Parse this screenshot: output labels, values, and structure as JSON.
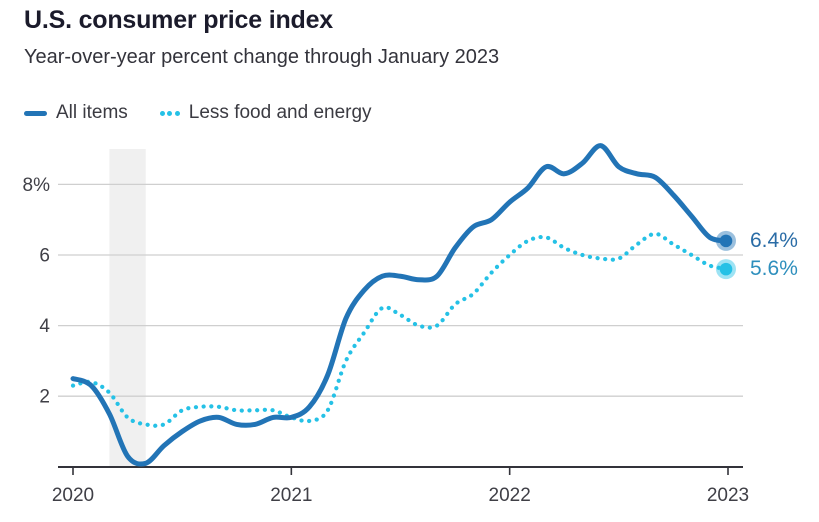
{
  "header": {
    "title": "U.S. consumer price index",
    "subtitle": "Year-over-year percent change through January 2023"
  },
  "legend": {
    "items": [
      {
        "label": "All items",
        "style": "solid"
      },
      {
        "label": "Less food and energy",
        "style": "dotted"
      }
    ]
  },
  "colors": {
    "all_items_line": "#2274b6",
    "core_line": "#25c1e6",
    "grid_line": "#cfcfcf",
    "axis_line": "#33333a",
    "axis_text": "#3f3f46",
    "recession_band": "#f0f0f0",
    "title_text": "#1b1b2b",
    "subtitle_text": "#33333b",
    "legend_text": "#3b3b42",
    "end_label_all_items": "#2a6ca6",
    "end_label_core": "#2e8fbd"
  },
  "chart_data": {
    "type": "line",
    "title": "U.S. consumer price index",
    "subtitle": "Year-over-year percent change through January 2023",
    "x_unit": "month",
    "x_start": "2020-01",
    "x_end": "2023-01",
    "x_ticks": [
      {
        "month_index": 0,
        "label": "2020"
      },
      {
        "month_index": 12,
        "label": "2021"
      },
      {
        "month_index": 24,
        "label": "2022"
      },
      {
        "month_index": 36,
        "label": "2023"
      }
    ],
    "y_ticks": [
      {
        "value": 2,
        "label": "2"
      },
      {
        "value": 4,
        "label": "4"
      },
      {
        "value": 6,
        "label": "6"
      },
      {
        "value": 8,
        "label": "8%"
      }
    ],
    "ylim": [
      0,
      9
    ],
    "grid": "horizontal",
    "legend_position": "top-left",
    "recession_band_month_range": [
      2,
      4
    ],
    "series": [
      {
        "name": "All items",
        "style": "solid",
        "color": "#2274b6",
        "end_label": "6.4%",
        "values": [
          2.5,
          2.3,
          1.5,
          0.3,
          0.1,
          0.6,
          1.0,
          1.3,
          1.4,
          1.2,
          1.2,
          1.4,
          1.4,
          1.7,
          2.6,
          4.2,
          5.0,
          5.4,
          5.4,
          5.3,
          5.4,
          6.2,
          6.8,
          7.0,
          7.5,
          7.9,
          8.5,
          8.3,
          8.6,
          9.1,
          8.5,
          8.3,
          8.2,
          7.7,
          7.1,
          6.5,
          6.4
        ]
      },
      {
        "name": "Less food and energy",
        "style": "dotted",
        "color": "#25c1e6",
        "end_label": "5.6%",
        "values": [
          2.3,
          2.4,
          2.1,
          1.4,
          1.2,
          1.2,
          1.6,
          1.7,
          1.7,
          1.6,
          1.6,
          1.6,
          1.4,
          1.3,
          1.6,
          3.0,
          3.8,
          4.5,
          4.3,
          4.0,
          4.0,
          4.6,
          4.9,
          5.5,
          6.0,
          6.4,
          6.5,
          6.2,
          6.0,
          5.9,
          5.9,
          6.3,
          6.6,
          6.3,
          6.0,
          5.7,
          5.6
        ]
      }
    ]
  }
}
